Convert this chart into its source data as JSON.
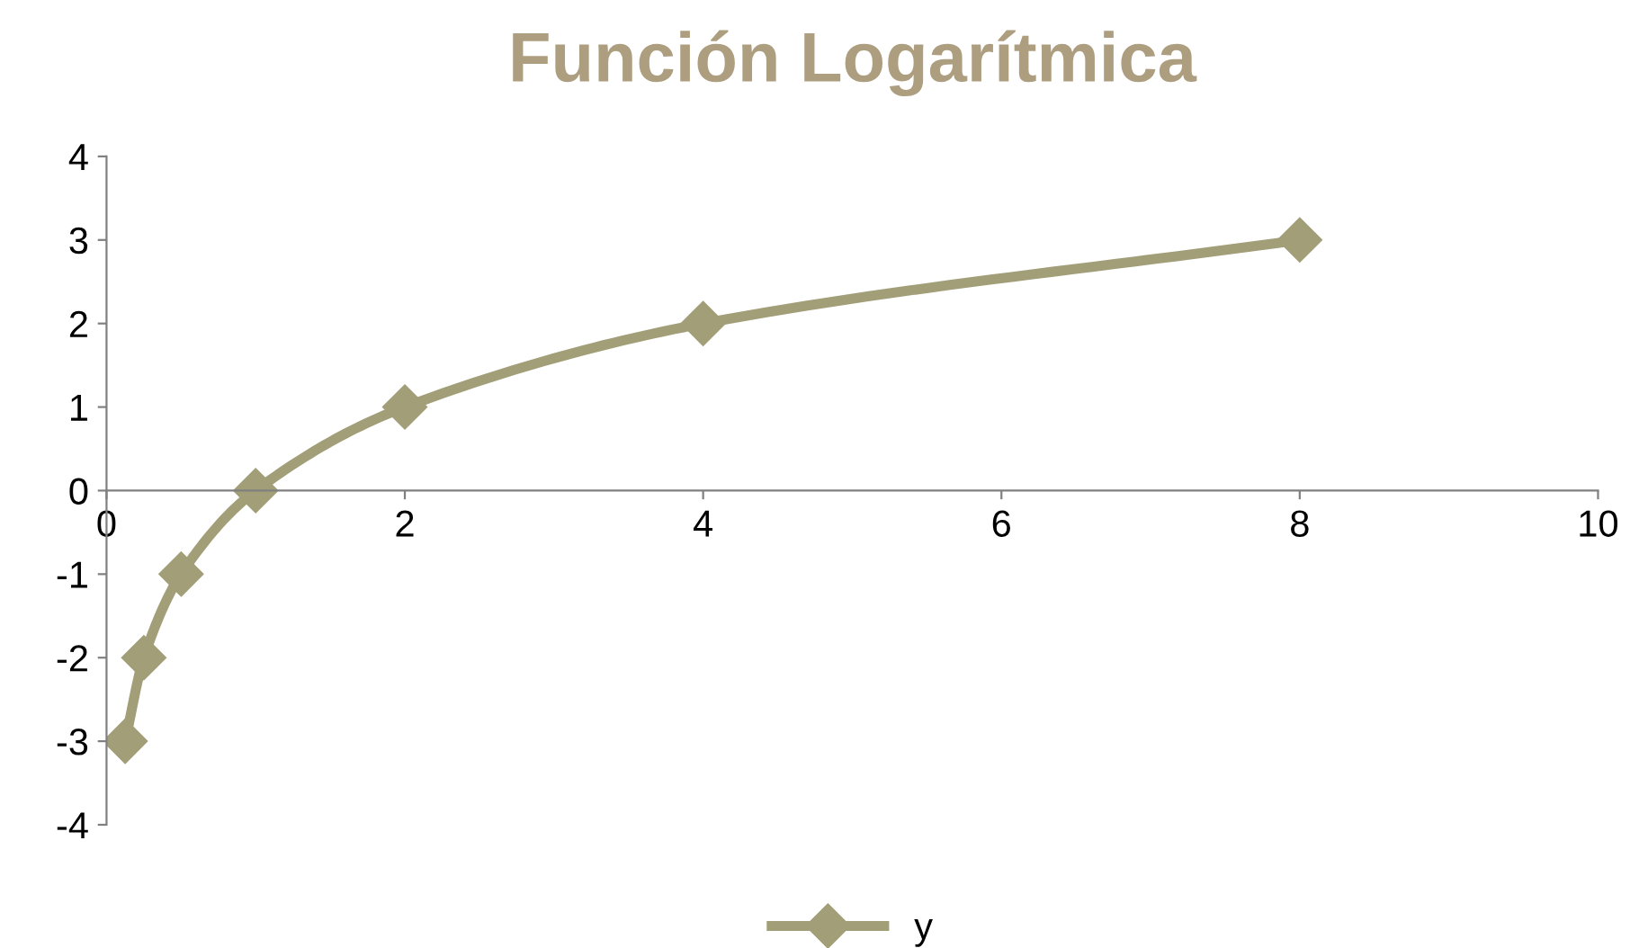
{
  "chart_data": {
    "type": "line",
    "title": "Función Logarítmica",
    "x": [
      0.125,
      0.25,
      0.5,
      1,
      2,
      4,
      8
    ],
    "series": [
      {
        "name": "y",
        "color": "#a19e78",
        "values": [
          -3,
          -2,
          -1,
          0,
          1,
          2,
          3
        ]
      }
    ],
    "xlim": [
      0,
      10
    ],
    "xticks": [
      0,
      2,
      4,
      6,
      8,
      10
    ],
    "ylim": [
      -4,
      4
    ],
    "yticks": [
      -4,
      -3,
      -2,
      -1,
      0,
      1,
      2,
      3,
      4
    ],
    "marker": "diamond",
    "line_style": "solid",
    "legend": "bottom",
    "grid": false
  }
}
